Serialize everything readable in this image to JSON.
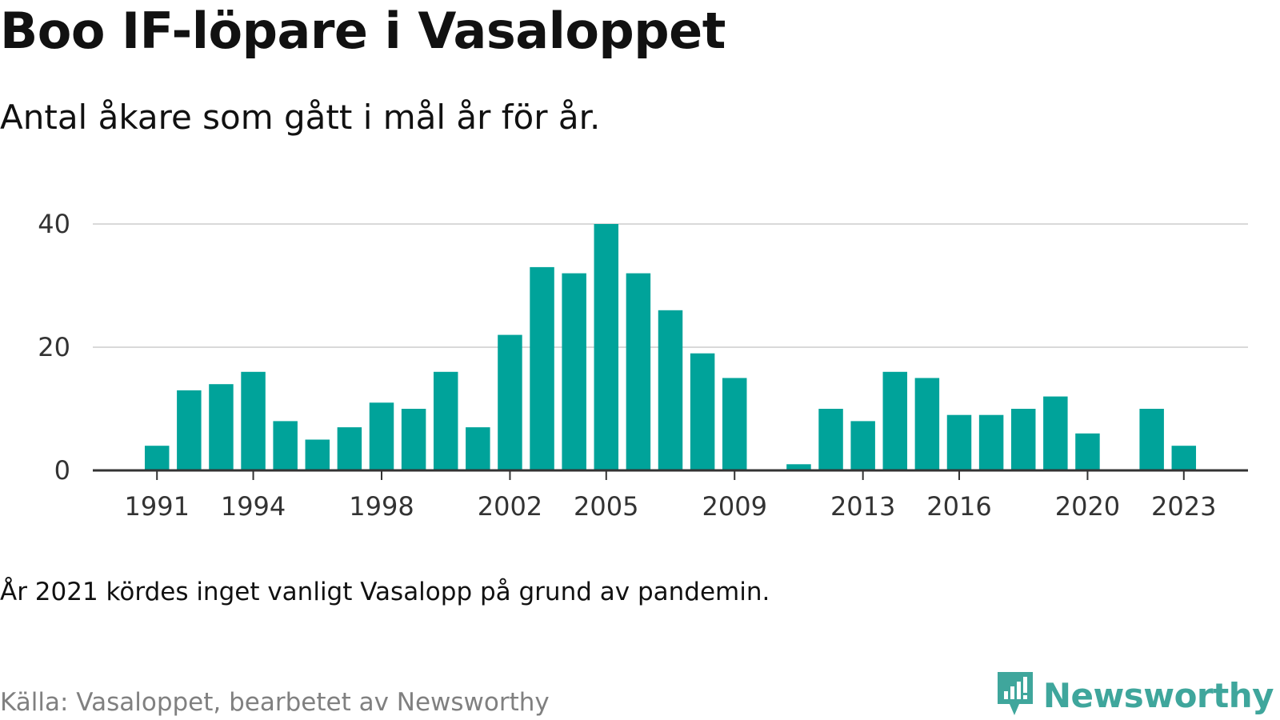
{
  "title": "Boo IF-löpare i Vasaloppet",
  "subtitle": "Antal åkare som gått i mål år för år.",
  "note": "År 2021 kördes inget vanligt Vasalopp på grund av pandemin.",
  "source": "Källa: Vasaloppet, bearbetet av Newsworthy",
  "brand": {
    "name": "Newsworthy",
    "icon": "newsworthy-logo-icon",
    "color": "#3fa69c"
  },
  "chart_data": {
    "type": "bar",
    "title": "Boo IF-löpare i Vasaloppet",
    "subtitle": "Antal åkare som gått i mål år för år.",
    "xlabel": "",
    "ylabel": "",
    "ylim": [
      0,
      40
    ],
    "yticks": [
      0,
      20,
      40
    ],
    "xticks": [
      1991,
      1994,
      1998,
      2002,
      2005,
      2009,
      2013,
      2016,
      2020,
      2023
    ],
    "xlim": [
      1989,
      2025
    ],
    "grid": true,
    "legend": "none",
    "bar_color": "#00a39a",
    "categories": [
      1991,
      1992,
      1993,
      1994,
      1995,
      1996,
      1997,
      1998,
      1999,
      2000,
      2001,
      2002,
      2003,
      2004,
      2005,
      2006,
      2007,
      2008,
      2009,
      2011,
      2012,
      2013,
      2014,
      2015,
      2016,
      2017,
      2018,
      2019,
      2020,
      2022,
      2023
    ],
    "values": [
      4,
      13,
      14,
      16,
      8,
      5,
      7,
      11,
      10,
      16,
      7,
      22,
      33,
      32,
      40,
      32,
      26,
      19,
      15,
      1,
      10,
      8,
      16,
      15,
      9,
      9,
      10,
      12,
      6,
      10,
      4
    ]
  }
}
